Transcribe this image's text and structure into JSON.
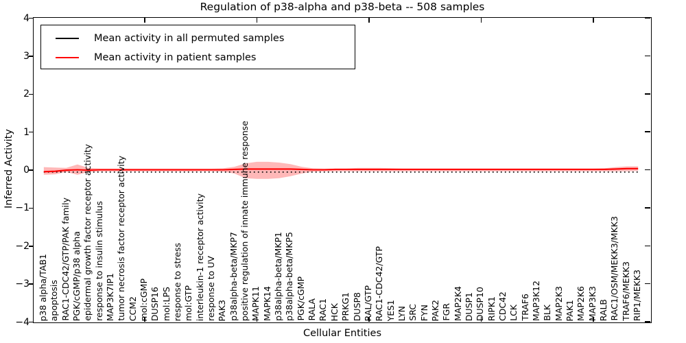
{
  "chart_data": {
    "type": "line",
    "title": "Regulation of p38-alpha and p38-beta -- 508 samples",
    "xlabel": "Cellular Entities",
    "ylabel": "Inferred Activity",
    "ylim": [
      -4,
      4
    ],
    "xlim": [
      0,
      55
    ],
    "yticks": [
      4,
      3,
      2,
      1,
      0,
      -1,
      -2,
      -3,
      -4
    ],
    "ytick_labels": [
      "4",
      "3",
      "2",
      "1",
      "0",
      "−1",
      "−2",
      "−3",
      "−4"
    ],
    "xticks": [
      10,
      20,
      30,
      40,
      50
    ],
    "grid": false,
    "legend_position": "upper left",
    "categories": [
      "p38 alpha/TAB1",
      "apoptosis",
      "RAC1-CDC42/GTP/PAK family",
      "PGK/cGMP/p38 alpha",
      "epidermal growth factor receptor activity",
      "response to insulin stimulus",
      "MAP3K7IP1",
      "tumor necrosis factor receptor activity",
      "CCM2",
      "mol:cGMP",
      "DUSP16",
      "mol:LPS",
      "response to stress",
      "mol:GTP",
      "interleukin-1 receptor activity",
      "response to UV",
      "PAK3",
      "p38alpha-beta/MKP7",
      "positive regulation of innate immune response",
      "MAPK11",
      "MAPK14",
      "p38alpha-beta/MKP1",
      "p38alpha-beta/MKP5",
      "PGK/cGMP",
      "RALA",
      "RAC1",
      "HCK",
      "PRKG1",
      "DUSP8",
      "RAL/GTP",
      "RAC1-CDC42/GTP",
      "YES1",
      "LYN",
      "SRC",
      "FYN",
      "PAK2",
      "FGR",
      "MAP2K4",
      "DUSP1",
      "DUSP10",
      "RIPK1",
      "CDC42",
      "LCK",
      "TRAF6",
      "MAP3K12",
      "BLK",
      "MAP2K3",
      "PAK1",
      "MAP2K6",
      "MAP3K3",
      "RALB",
      "RAC1/OSM/MEKK3/MKK3",
      "TRAF6/MEKK3",
      "RIP1/MEKK3"
    ],
    "series": [
      {
        "name": "Mean activity in all permuted samples",
        "color": "#000000",
        "style": "dotted",
        "values": [
          -0.06,
          -0.06,
          -0.06,
          -0.06,
          -0.06,
          -0.06,
          -0.06,
          -0.06,
          -0.06,
          -0.06,
          -0.06,
          -0.06,
          -0.06,
          -0.06,
          -0.06,
          -0.06,
          -0.06,
          -0.06,
          -0.06,
          -0.06,
          -0.06,
          -0.06,
          -0.06,
          -0.06,
          -0.06,
          -0.06,
          -0.06,
          -0.06,
          -0.06,
          -0.06,
          -0.06,
          -0.06,
          -0.06,
          -0.06,
          -0.06,
          -0.06,
          -0.06,
          -0.06,
          -0.06,
          -0.06,
          -0.06,
          -0.06,
          -0.06,
          -0.06,
          -0.06,
          -0.06,
          -0.06,
          -0.06,
          -0.06,
          -0.06,
          -0.06,
          -0.06,
          -0.06,
          -0.06
        ]
      },
      {
        "name": "Mean activity in patient samples",
        "color": "#ff0000",
        "style": "solid",
        "values": [
          -0.05,
          -0.04,
          -0.01,
          0.0,
          -0.01,
          0.0,
          0.0,
          0.0,
          0.0,
          0.0,
          0.0,
          0.0,
          0.0,
          0.0,
          0.0,
          0.0,
          0.0,
          0.01,
          0.02,
          0.02,
          0.02,
          0.02,
          0.02,
          0.01,
          0.0,
          0.0,
          0.01,
          0.01,
          0.01,
          0.01,
          0.01,
          0.01,
          0.01,
          0.01,
          0.01,
          0.01,
          0.01,
          0.01,
          0.01,
          0.01,
          0.01,
          0.01,
          0.01,
          0.01,
          0.01,
          0.01,
          0.01,
          0.01,
          0.01,
          0.01,
          0.01,
          0.02,
          0.03,
          0.03
        ]
      }
    ],
    "band": {
      "series": "Mean activity in patient samples",
      "color": "#ff0000",
      "opacity": 0.28,
      "upper": [
        0.07,
        0.06,
        0.05,
        0.14,
        0.05,
        0.03,
        0.03,
        0.03,
        0.03,
        0.03,
        0.03,
        0.03,
        0.03,
        0.03,
        0.03,
        0.03,
        0.04,
        0.08,
        0.17,
        0.21,
        0.21,
        0.19,
        0.15,
        0.08,
        0.04,
        0.03,
        0.03,
        0.03,
        0.05,
        0.05,
        0.05,
        0.04,
        0.03,
        0.03,
        0.03,
        0.03,
        0.03,
        0.03,
        0.03,
        0.03,
        0.03,
        0.03,
        0.03,
        0.03,
        0.03,
        0.03,
        0.03,
        0.03,
        0.03,
        0.03,
        0.04,
        0.07,
        0.09,
        0.09
      ],
      "lower": [
        -0.13,
        -0.12,
        -0.06,
        -0.13,
        -0.06,
        -0.04,
        -0.04,
        -0.04,
        -0.04,
        -0.04,
        -0.04,
        -0.04,
        -0.04,
        -0.04,
        -0.04,
        -0.04,
        -0.05,
        -0.1,
        -0.22,
        -0.24,
        -0.24,
        -0.22,
        -0.17,
        -0.1,
        -0.05,
        -0.04,
        -0.04,
        -0.04,
        -0.04,
        -0.04,
        -0.04,
        -0.04,
        -0.04,
        -0.04,
        -0.04,
        -0.04,
        -0.04,
        -0.04,
        -0.04,
        -0.04,
        -0.04,
        -0.04,
        -0.04,
        -0.04,
        -0.04,
        -0.04,
        -0.04,
        -0.04,
        -0.04,
        -0.04,
        -0.04,
        -0.04,
        -0.04,
        -0.03
      ]
    }
  }
}
